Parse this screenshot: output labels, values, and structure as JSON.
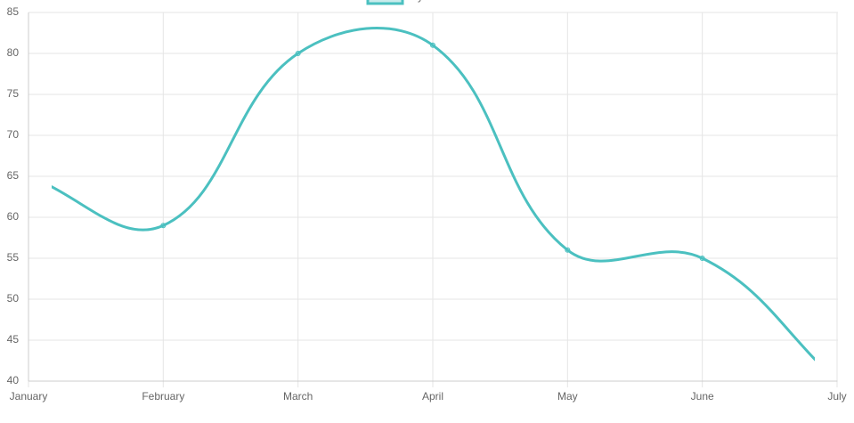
{
  "chart_data": {
    "type": "line",
    "legend": "top",
    "categories": [
      "January",
      "February",
      "March",
      "April",
      "May",
      "June",
      "July"
    ],
    "series": [
      {
        "name": "My First Dataset",
        "color": "#4bc0c0",
        "values": [
          65,
          59,
          80,
          81,
          56,
          55,
          40
        ]
      }
    ],
    "ylim": [
      40,
      85
    ],
    "yticks": [
      40,
      45,
      50,
      55,
      60,
      65,
      70,
      75,
      80,
      85
    ],
    "grid": true
  }
}
